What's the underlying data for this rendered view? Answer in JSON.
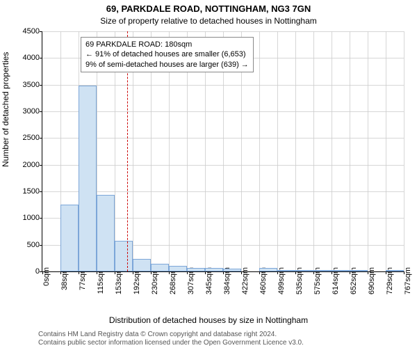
{
  "title": "69, PARKDALE ROAD, NOTTINGHAM, NG3 7GN",
  "subtitle": "Size of property relative to detached houses in Nottingham",
  "ylabel": "Number of detached properties",
  "xlabel": "Distribution of detached houses by size in Nottingham",
  "footer1": "Contains HM Land Registry data © Crown copyright and database right 2024.",
  "footer2": "Contains public sector information licensed under the Open Government Licence v3.0.",
  "chart": {
    "type": "histogram",
    "ylim": [
      0,
      4500
    ],
    "ytick_step": 500,
    "y_ticks": [
      0,
      500,
      1000,
      1500,
      2000,
      2500,
      3000,
      3500,
      4000,
      4500
    ],
    "x_tick_labels": [
      "0sqm",
      "38sqm",
      "77sqm",
      "115sqm",
      "153sqm",
      "192sqm",
      "230sqm",
      "268sqm",
      "307sqm",
      "345sqm",
      "384sqm",
      "422sqm",
      "460sqm",
      "499sqm",
      "535sqm",
      "575sqm",
      "614sqm",
      "652sqm",
      "690sqm",
      "729sqm",
      "767sqm"
    ],
    "bar_values": [
      0,
      1250,
      3480,
      1440,
      580,
      240,
      150,
      100,
      70,
      60,
      50,
      0,
      60,
      30,
      10,
      10,
      10,
      10,
      0,
      10
    ],
    "bar_fill": "#cfe2f3",
    "bar_border": "#7ca6d8",
    "grid_color": "#cccccc",
    "background_color": "#ffffff",
    "reference_line_x": 180,
    "reference_line_color": "#cc0000",
    "x_max": 767
  },
  "annotation": {
    "line1": "69 PARKDALE ROAD: 180sqm",
    "line2": "← 91% of detached houses are smaller (6,653)",
    "line3": "9% of semi-detached houses are larger (639) →"
  }
}
